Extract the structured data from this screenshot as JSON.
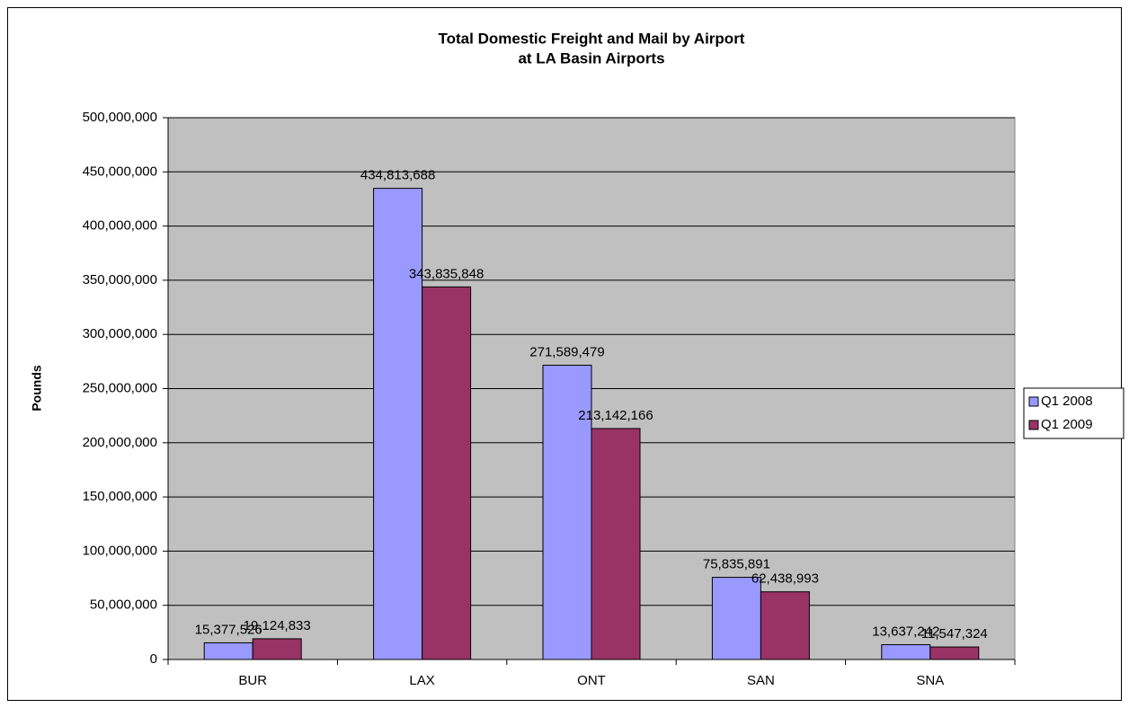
{
  "chart_data": {
    "type": "bar",
    "title": [
      "Total Domestic Freight and Mail by Airport",
      "at LA Basin Airports"
    ],
    "ylabel": "Pounds",
    "categories": [
      "BUR",
      "LAX",
      "ONT",
      "SAN",
      "SNA"
    ],
    "series": [
      {
        "name": "Q1 2008",
        "color": "#9999ff",
        "values": [
          15377526,
          434813688,
          271589479,
          75835891,
          13637242
        ],
        "value_labels": [
          "15,377,526",
          "434,813,688",
          "271,589,479",
          "75,835,891",
          "13,637,242"
        ]
      },
      {
        "name": "Q1 2009",
        "color": "#993366",
        "values": [
          19124833,
          343835848,
          213142166,
          62438993,
          11547324
        ],
        "value_labels": [
          "19,124,833",
          "343,835,848",
          "213,142,166",
          "62,438,993",
          "11,547,324"
        ]
      }
    ],
    "ylim": [
      0,
      500000000
    ],
    "yticks": [
      0,
      {
        "value": 50000000,
        "label": "50,000,000"
      },
      {
        "value": 100000000,
        "label": "100,000,000"
      },
      {
        "value": 150000000,
        "label": "150,000,000"
      },
      {
        "value": 200000000,
        "label": "200,000,000"
      },
      {
        "value": 250000000,
        "label": "250,000,000"
      },
      {
        "value": 300000000,
        "label": "300,000,000"
      },
      {
        "value": 350000000,
        "label": "350,000,000"
      },
      {
        "value": 400000000,
        "label": "400,000,000"
      },
      {
        "value": 450000000,
        "label": "450,000,000"
      },
      {
        "value": 500000000,
        "label": "500,000,000"
      }
    ],
    "grid": true,
    "legend": "right",
    "plot_background": "#c0c0c0"
  }
}
